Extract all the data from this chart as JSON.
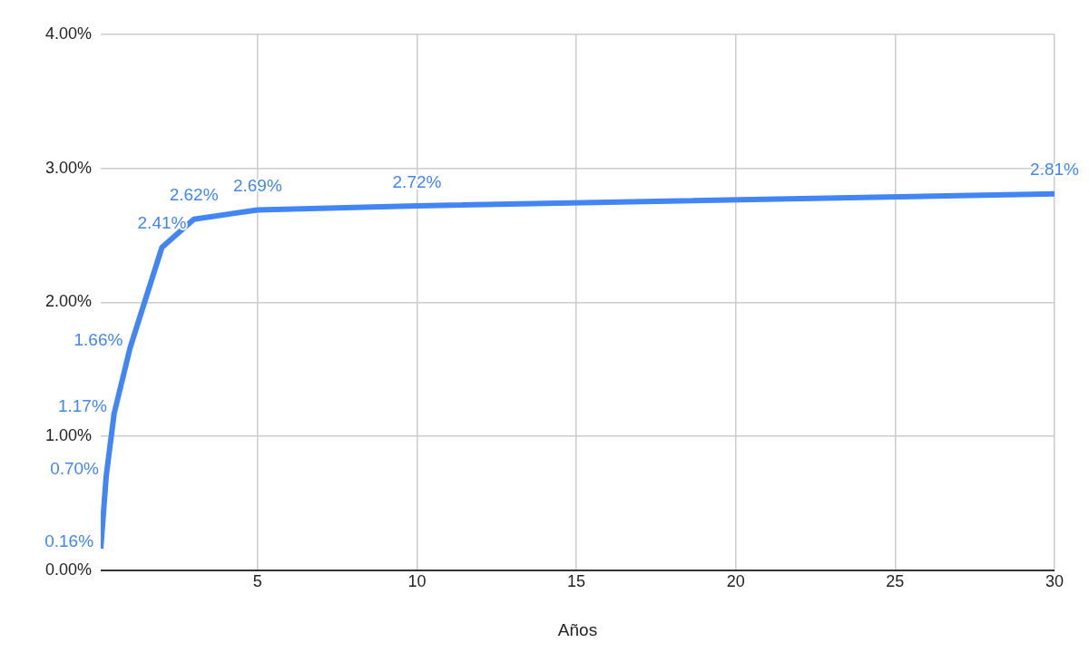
{
  "chart_data": {
    "type": "line",
    "xlabel": "Años",
    "x": [
      0.08,
      0.25,
      0.5,
      1,
      2,
      3,
      5,
      10,
      30
    ],
    "series": [
      {
        "color": "#4285f4",
        "values": [
          0.16,
          0.7,
          1.17,
          1.66,
          2.41,
          2.62,
          2.69,
          2.72,
          2.81
        ],
        "value_labels": [
          "0.16%",
          "0.70%",
          "1.17%",
          "1.66%",
          "2.41%",
          "2.62%",
          "2.69%",
          "2.72%",
          "2.81%"
        ]
      }
    ],
    "xlim": [
      0.08,
      30
    ],
    "xticks": [
      5,
      10,
      15,
      20,
      25,
      30
    ],
    "ylim": [
      0,
      4
    ],
    "yticks": [
      {
        "value": 0,
        "label": "0.00%"
      },
      {
        "value": 1,
        "label": "1.00%"
      },
      {
        "value": 2,
        "label": "2.00%"
      },
      {
        "value": 3,
        "label": "3.00%"
      },
      {
        "value": 4,
        "label": "4.00%"
      }
    ],
    "grid": true,
    "legend": false,
    "marker": "none",
    "line_style": "solid"
  }
}
